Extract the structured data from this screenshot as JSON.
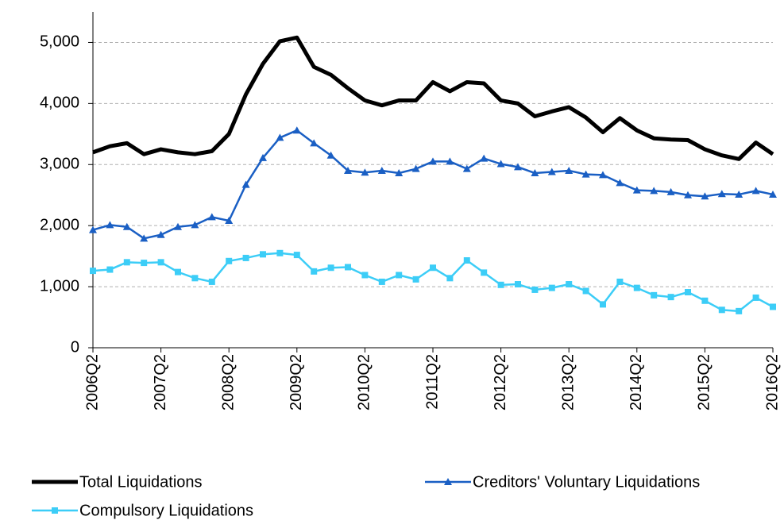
{
  "chart_data": {
    "type": "line",
    "categories": [
      "2006Q2",
      null,
      null,
      null,
      "2007Q2",
      null,
      null,
      null,
      "2008Q2",
      null,
      null,
      null,
      "2009Q2",
      null,
      null,
      null,
      "2010Q2",
      null,
      null,
      null,
      "2011Q2",
      null,
      null,
      null,
      "2012Q2",
      null,
      null,
      null,
      "2013Q2",
      null,
      null,
      null,
      "2014Q2",
      null,
      null,
      null,
      "2015Q2",
      null,
      null,
      null,
      "2016Q2"
    ],
    "series": [
      {
        "name": "Total Liquidations",
        "color": "#000000",
        "marker": null,
        "values": [
          3200,
          3300,
          3350,
          3170,
          3250,
          3200,
          3170,
          3220,
          3500,
          4150,
          4650,
          5020,
          5080,
          4600,
          4470,
          4250,
          4050,
          3970,
          4050,
          4050,
          4350,
          4200,
          4350,
          4330,
          4050,
          4000,
          3790,
          3870,
          3940,
          3770,
          3530,
          3760,
          3560,
          3430,
          3410,
          3400,
          3250,
          3150,
          3090,
          3360,
          3170
        ]
      },
      {
        "name": "Creditors' Voluntary Liquidations",
        "color": "#1a5fc4",
        "marker": "triangle",
        "values": [
          1930,
          2010,
          1980,
          1790,
          1850,
          1980,
          2010,
          2140,
          2080,
          2670,
          3110,
          3440,
          3560,
          3350,
          3150,
          2900,
          2870,
          2900,
          2860,
          2930,
          3050,
          3050,
          2930,
          3100,
          3010,
          2960,
          2860,
          2880,
          2900,
          2840,
          2830,
          2700,
          2580,
          2570,
          2550,
          2500,
          2480,
          2520,
          2510,
          2570,
          2510
        ]
      },
      {
        "name": "Compulsory Liquidations",
        "color": "#3ccdf7",
        "marker": "square",
        "values": [
          1260,
          1280,
          1400,
          1390,
          1400,
          1240,
          1140,
          1080,
          1420,
          1470,
          1530,
          1550,
          1520,
          1250,
          1310,
          1320,
          1190,
          1080,
          1190,
          1120,
          1310,
          1140,
          1430,
          1230,
          1030,
          1040,
          950,
          980,
          1040,
          930,
          710,
          1080,
          980,
          860,
          830,
          910,
          770,
          620,
          600,
          820,
          670
        ]
      }
    ],
    "ylim": [
      0,
      5500
    ],
    "yticks": [
      0,
      {
        "value": 1000,
        "label": "1,000"
      },
      {
        "value": 2000,
        "label": "2,000"
      },
      {
        "value": 3000,
        "label": "3,000"
      },
      {
        "value": 4000,
        "label": "4,000"
      },
      {
        "value": 5000,
        "label": "5,000"
      }
    ],
    "grid": true,
    "legend": "bottom"
  }
}
